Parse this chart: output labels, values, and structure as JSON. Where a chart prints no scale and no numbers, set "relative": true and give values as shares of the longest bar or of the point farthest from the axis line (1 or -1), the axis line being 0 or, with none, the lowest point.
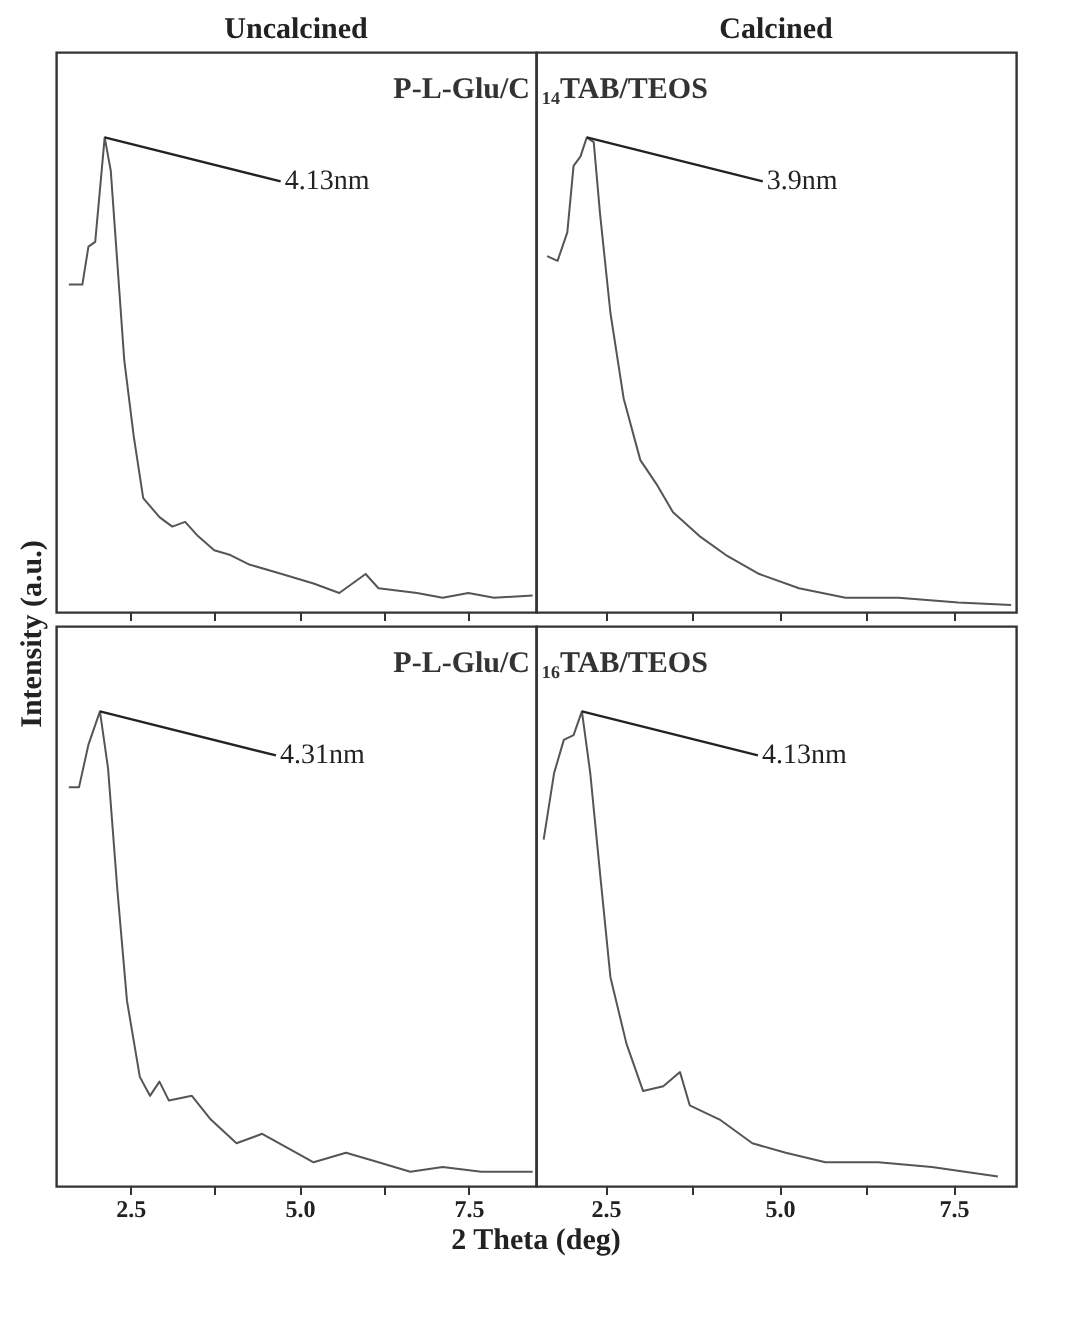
{
  "chart_data": [
    {
      "type": "line",
      "title": "Uncalcined",
      "ylabel": "Intensity (a.u.)",
      "relative": true,
      "color": "#555555",
      "tick_labels": false,
      "xlim": [
        1.4,
        8.5
      ],
      "xticks": [
        {
          "value": 2.5,
          "label": null
        },
        {
          "value": 3.75,
          "label": null
        },
        {
          "value": 5.0,
          "label": null
        },
        {
          "value": 6.25,
          "label": null
        },
        {
          "value": 7.5,
          "label": null
        }
      ],
      "x": [
        1.59,
        1.79,
        1.88,
        1.98,
        2.12,
        2.21,
        2.31,
        2.41,
        2.55,
        2.69,
        2.93,
        3.12,
        3.31,
        3.5,
        3.74,
        3.98,
        4.26,
        4.74,
        5.21,
        5.59,
        5.98,
        6.17,
        6.74,
        7.12,
        7.5,
        7.88,
        8.45
      ],
      "values": [
        0.69,
        0.69,
        0.77,
        0.78,
        1.0,
        0.93,
        0.73,
        0.53,
        0.37,
        0.24,
        0.2,
        0.18,
        0.19,
        0.16,
        0.13,
        0.12,
        0.1,
        0.08,
        0.06,
        0.04,
        0.08,
        0.05,
        0.04,
        0.03,
        0.04,
        0.03,
        0.035
      ],
      "annotations": [
        "P-L-Glu/C",
        {
          "text": "4.13nm",
          "x": 2.12,
          "y": 1.0
        }
      ]
    },
    {
      "type": "line",
      "title": "Calcined",
      "relative": true,
      "color": "#555555",
      "tick_labels": false,
      "xlim": [
        1.5,
        8.4
      ],
      "xticks": [
        {
          "value": 2.5,
          "label": null
        },
        {
          "value": 3.75,
          "label": null
        },
        {
          "value": 5.0,
          "label": null
        },
        {
          "value": 6.25,
          "label": null
        },
        {
          "value": 7.5,
          "label": null
        }
      ],
      "x": [
        1.66,
        1.81,
        1.95,
        2.04,
        2.14,
        2.23,
        2.33,
        2.42,
        2.57,
        2.76,
        3.0,
        3.23,
        3.47,
        3.85,
        4.23,
        4.71,
        5.28,
        5.95,
        6.71,
        7.57,
        8.33
      ],
      "values": [
        0.75,
        0.74,
        0.8,
        0.94,
        0.96,
        1.0,
        0.99,
        0.84,
        0.63,
        0.45,
        0.32,
        0.27,
        0.21,
        0.16,
        0.12,
        0.08,
        0.05,
        0.03,
        0.03,
        0.02,
        0.015
      ],
      "annotations": [
        "₁₄TAB/TEOS",
        {
          "text": "3.9nm",
          "x": 2.23,
          "y": 1.0
        }
      ]
    },
    {
      "type": "line",
      "xlabel": "2 Theta (deg)",
      "relative": true,
      "color": "#555555",
      "tick_labels": "x",
      "xlim": [
        1.4,
        8.5
      ],
      "xticks": [
        {
          "value": 2.5,
          "label": "2.5"
        },
        {
          "value": 3.75,
          "label": null
        },
        {
          "value": 5.0,
          "label": "5.0"
        },
        {
          "value": 6.25,
          "label": null
        },
        {
          "value": 7.5,
          "label": "7.5"
        }
      ],
      "x": [
        1.59,
        1.74,
        1.88,
        2.05,
        2.17,
        2.31,
        2.45,
        2.64,
        2.79,
        2.93,
        3.07,
        3.41,
        3.69,
        4.07,
        4.45,
        4.83,
        5.21,
        5.69,
        6.17,
        6.64,
        7.12,
        7.69,
        8.45
      ],
      "values": [
        0.84,
        0.84,
        0.93,
        1.0,
        0.88,
        0.62,
        0.39,
        0.23,
        0.19,
        0.22,
        0.18,
        0.19,
        0.14,
        0.09,
        0.11,
        0.08,
        0.05,
        0.07,
        0.05,
        0.03,
        0.04,
        0.03,
        0.03
      ],
      "annotations": [
        "P-L-Glu/C",
        {
          "text": "4.31nm",
          "x": 2.05,
          "y": 1.0
        }
      ]
    },
    {
      "type": "line",
      "relative": true,
      "color": "#555555",
      "tick_labels": "x",
      "xlim": [
        1.5,
        8.4
      ],
      "xticks": [
        {
          "value": 2.5,
          "label": "2.5"
        },
        {
          "value": 3.75,
          "label": null
        },
        {
          "value": 5.0,
          "label": "5.0"
        },
        {
          "value": 6.25,
          "label": null
        },
        {
          "value": 7.5,
          "label": "7.5"
        }
      ],
      "x": [
        1.61,
        1.76,
        1.9,
        2.04,
        2.16,
        2.28,
        2.42,
        2.57,
        2.8,
        3.04,
        3.33,
        3.57,
        3.71,
        4.14,
        4.61,
        5.09,
        5.66,
        6.42,
        7.19,
        8.14
      ],
      "values": [
        0.73,
        0.87,
        0.94,
        0.95,
        1.0,
        0.87,
        0.66,
        0.44,
        0.3,
        0.2,
        0.21,
        0.24,
        0.17,
        0.14,
        0.09,
        0.07,
        0.05,
        0.05,
        0.04,
        0.02
      ],
      "annotations": [
        "₁₆TAB/TEOS",
        {
          "text": "4.13nm",
          "x": 2.16,
          "y": 1.0
        }
      ]
    }
  ]
}
